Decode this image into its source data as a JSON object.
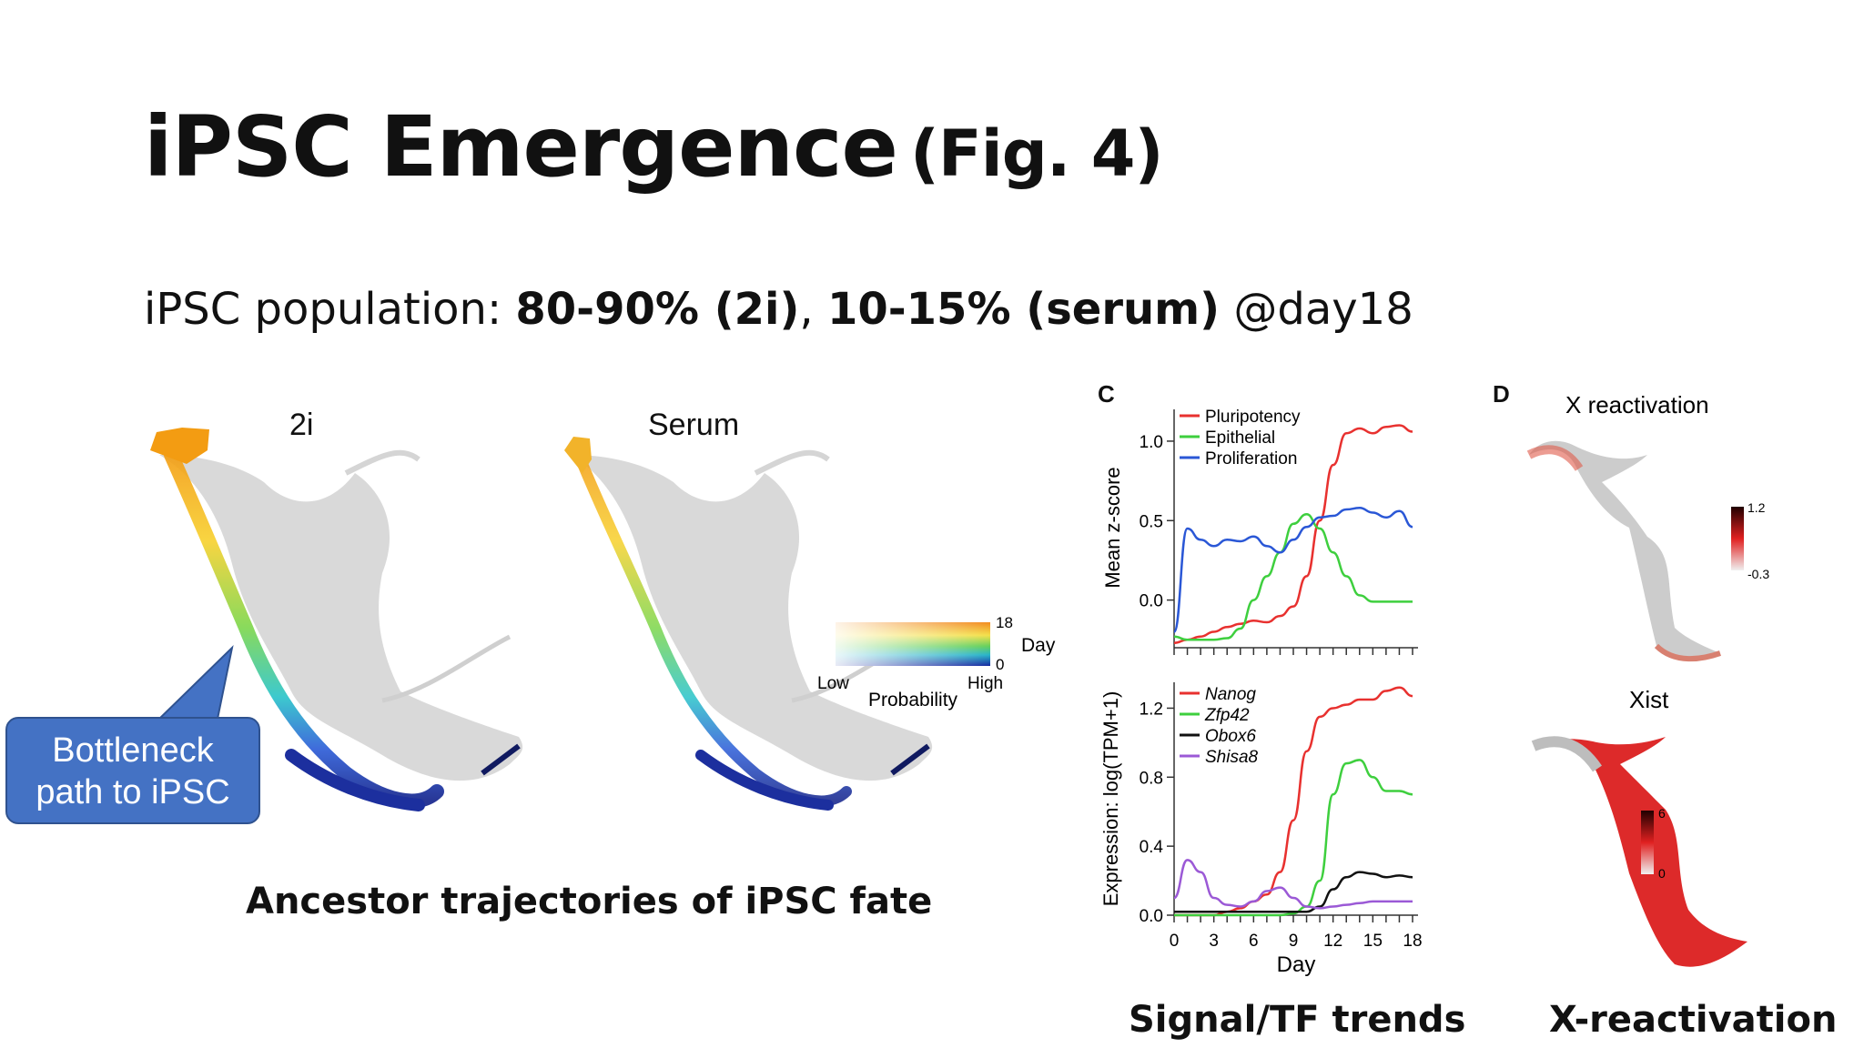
{
  "slide": {
    "title": "iPSC Emergence",
    "title_fig": "(Fig. 4)",
    "subtitle_prefix": "iPSC population: ",
    "subtitle_bold1": "80-90% (2i)",
    "subtitle_sep": ", ",
    "subtitle_bold2": "10-15% (serum)",
    "subtitle_suffix": " @day18"
  },
  "umap_panel": {
    "label_2i": "2i",
    "label_serum": "Serum",
    "callout": [
      "Bottleneck",
      "path to iPSC"
    ],
    "caption": "Ancestor trajectories of iPSC fate",
    "colorbar": {
      "top": "18",
      "bottom": "0",
      "day": "Day",
      "low": "Low",
      "high": "High",
      "probability": "Probability"
    }
  },
  "panel_c": {
    "letter": "C",
    "caption": "Signal/TF trends"
  },
  "panel_d": {
    "letter": "D",
    "title_top": "X reactivation",
    "title_bottom": "Xist",
    "scale_top": {
      "max": "1.2",
      "min": "-0.3"
    },
    "scale_bottom": {
      "max": "6",
      "min": "0"
    },
    "caption": "X-reactivation"
  },
  "chart_data": [
    {
      "type": "line",
      "ylabel": "Mean z-score",
      "xlim": [
        0,
        18
      ],
      "ylim": [
        -0.3,
        1.2
      ],
      "yticks": [
        0.0,
        0.5,
        1.0
      ],
      "ytick_labels": [
        "0.0",
        "0.5",
        "1.0"
      ],
      "x": [
        0,
        1,
        2,
        3,
        4,
        5,
        6,
        7,
        8,
        9,
        10,
        11,
        12,
        13,
        14,
        15,
        16,
        17,
        18
      ],
      "series": [
        {
          "name": "Pluripotency",
          "color": "#e8312f",
          "values": [
            -0.27,
            -0.25,
            -0.23,
            -0.2,
            -0.17,
            -0.15,
            -0.13,
            -0.14,
            -0.1,
            -0.04,
            0.15,
            0.5,
            0.85,
            1.05,
            1.08,
            1.05,
            1.09,
            1.1,
            1.06
          ]
        },
        {
          "name": "Epithelial",
          "color": "#3ecf3e",
          "values": [
            -0.23,
            -0.25,
            -0.25,
            -0.25,
            -0.24,
            -0.18,
            0.0,
            0.15,
            0.3,
            0.48,
            0.54,
            0.45,
            0.3,
            0.15,
            0.03,
            -0.01,
            -0.01,
            -0.01,
            -0.01
          ]
        },
        {
          "name": "Proliferation",
          "color": "#2a57d6",
          "values": [
            -0.2,
            0.45,
            0.38,
            0.34,
            0.38,
            0.37,
            0.4,
            0.34,
            0.3,
            0.38,
            0.46,
            0.52,
            0.53,
            0.57,
            0.58,
            0.55,
            0.52,
            0.56,
            0.46
          ]
        }
      ]
    },
    {
      "type": "line",
      "xlabel": "Day",
      "ylabel": "Expression: log(TPM+1)",
      "xlim": [
        0,
        18
      ],
      "ylim": [
        0,
        1.35
      ],
      "xticks": [
        0,
        3,
        6,
        9,
        12,
        15,
        18
      ],
      "xtick_labels": [
        "0",
        "3",
        "6",
        "9",
        "12",
        "15",
        "18"
      ],
      "yticks": [
        0.0,
        0.4,
        0.8,
        1.2
      ],
      "ytick_labels": [
        "0.0",
        "0.4",
        "0.8",
        "1.2"
      ],
      "x": [
        0,
        1,
        2,
        3,
        4,
        5,
        6,
        7,
        8,
        9,
        10,
        11,
        12,
        13,
        14,
        15,
        16,
        17,
        18
      ],
      "series": [
        {
          "name": "Nanog",
          "color": "#e8312f",
          "values": [
            0.0,
            0.0,
            0.0,
            0.0,
            0.02,
            0.04,
            0.08,
            0.12,
            0.25,
            0.55,
            0.95,
            1.15,
            1.2,
            1.22,
            1.25,
            1.25,
            1.3,
            1.32,
            1.27
          ]
        },
        {
          "name": "Zfp42",
          "color": "#3ecf3e",
          "values": [
            0.0,
            0.0,
            0.0,
            0.0,
            0.0,
            0.0,
            0.0,
            0.0,
            0.0,
            0.01,
            0.05,
            0.2,
            0.7,
            0.88,
            0.9,
            0.8,
            0.72,
            0.72,
            0.7
          ]
        },
        {
          "name": "Obox6",
          "color": "#111111",
          "values": [
            0.02,
            0.02,
            0.02,
            0.02,
            0.02,
            0.02,
            0.02,
            0.02,
            0.02,
            0.02,
            0.02,
            0.05,
            0.15,
            0.22,
            0.25,
            0.24,
            0.22,
            0.23,
            0.22
          ]
        },
        {
          "name": "Shisa8",
          "color": "#9b59d6",
          "values": [
            0.1,
            0.32,
            0.25,
            0.1,
            0.06,
            0.05,
            0.08,
            0.14,
            0.16,
            0.1,
            0.05,
            0.04,
            0.05,
            0.06,
            0.07,
            0.08,
            0.08,
            0.08,
            0.08
          ]
        }
      ]
    }
  ]
}
